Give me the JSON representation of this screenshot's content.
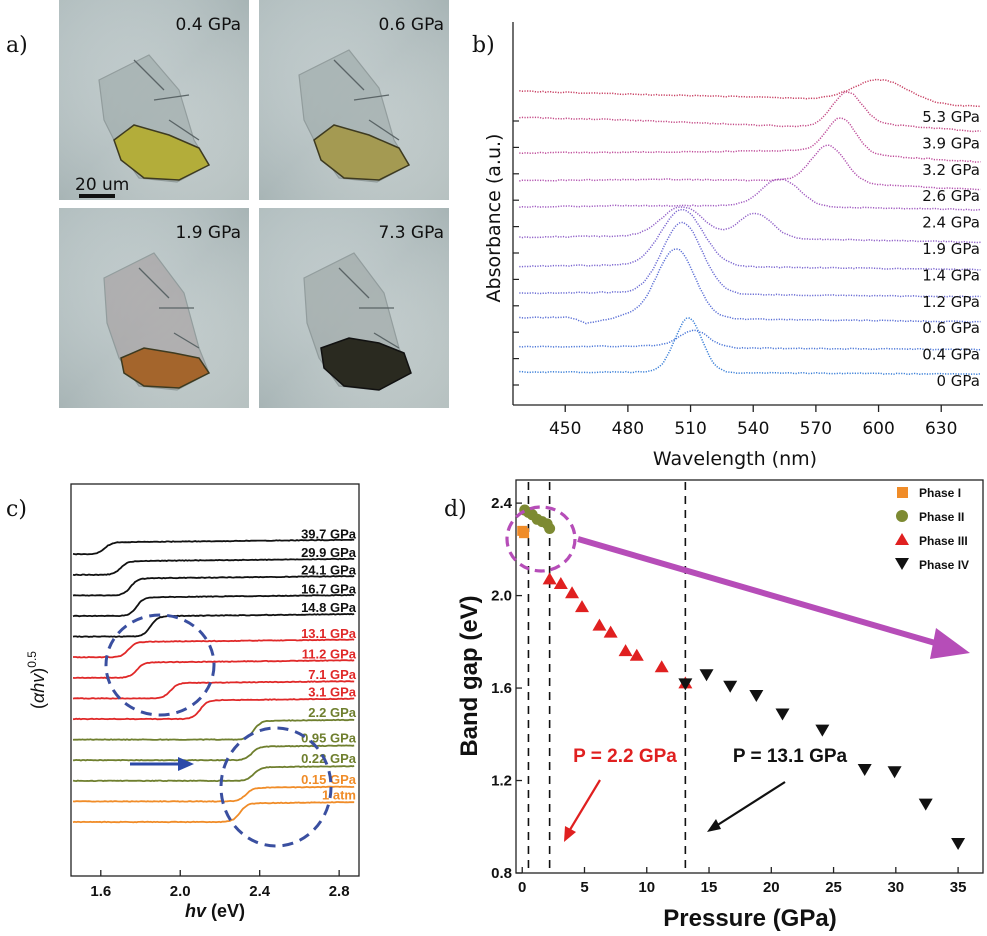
{
  "panel_a": {
    "letter": "a)",
    "scale_bar": "20 um",
    "images": [
      {
        "label": "0.4 GPa",
        "crystal": "#b3ad3a"
      },
      {
        "label": "0.6 GPa",
        "crystal": "#a49a52"
      },
      {
        "label": "1.9 GPa",
        "crystal": "#a4652c"
      },
      {
        "label": "7.3 GPa",
        "crystal": "#2a2a20"
      }
    ]
  },
  "panel_b": {
    "letter": "b)"
  },
  "panel_c": {
    "letter": "c)"
  },
  "panel_d": {
    "letter": "d)"
  },
  "chart_data": [
    {
      "panel": "b",
      "type": "line",
      "xlabel": "Wavelength (nm)",
      "ylabel": "Absorbance (a.u.)",
      "xlim": [
        425,
        650
      ],
      "xticks": [
        450,
        480,
        510,
        540,
        570,
        600,
        630
      ],
      "series": [
        {
          "name": "0 GPa",
          "color": "#3a7fd8",
          "offset": 0.0,
          "base": [
            [
              425,
              0.3
            ],
            [
              500,
              0.3
            ],
            [
              520,
              0.28
            ],
            [
              650,
              0.22
            ]
          ],
          "peaks": [
            {
              "c": 509,
              "h": 2.05,
              "w": 6.5
            }
          ]
        },
        {
          "name": "0.4 GPa",
          "color": "#4c77d8",
          "offset": 1.0,
          "base": [
            [
              425,
              0.25
            ],
            [
              505,
              0.3
            ],
            [
              520,
              0.22
            ],
            [
              650,
              0.15
            ]
          ],
          "peaks": [
            {
              "c": 512,
              "h": 0.62,
              "w": 7
            }
          ]
        },
        {
          "name": "0.6 GPa",
          "color": "#5a6fd6",
          "offset": 2.0,
          "base": [
            [
              425,
              0.35
            ],
            [
              452,
              0.38
            ],
            [
              460,
              0.15
            ],
            [
              480,
              0.45
            ],
            [
              520,
              0.32
            ],
            [
              650,
              0.2
            ]
          ],
          "peaks": [
            {
              "c": 503,
              "h": 2.6,
              "w": 9
            }
          ]
        },
        {
          "name": "1.2 GPa",
          "color": "#6a6cd4",
          "offset": 3.0,
          "base": [
            [
              425,
              0.28
            ],
            [
              470,
              0.32
            ],
            [
              520,
              0.25
            ],
            [
              650,
              0.15
            ]
          ],
          "peaks": [
            {
              "c": 506,
              "h": 2.7,
              "w": 9.5
            }
          ]
        },
        {
          "name": "1.4 GPa",
          "color": "#7b66d0",
          "offset": 4.0,
          "base": [
            [
              425,
              0.3
            ],
            [
              470,
              0.35
            ],
            [
              520,
              0.3
            ],
            [
              650,
              0.18
            ]
          ],
          "peaks": [
            {
              "c": 506,
              "h": 2.15,
              "w": 10
            }
          ]
        },
        {
          "name": "1.9 GPa",
          "color": "#9060c8",
          "offset": 5.0,
          "base": [
            [
              425,
              0.4
            ],
            [
              470,
              0.45
            ],
            [
              520,
              0.4
            ],
            [
              650,
              0.22
            ]
          ],
          "peaks": [
            {
              "c": 506,
              "h": 1.15,
              "w": 10
            },
            {
              "c": 541,
              "h": 0.95,
              "w": 8
            }
          ]
        },
        {
          "name": "2.4 GPa",
          "color": "#a05ac0",
          "offset": 6.0,
          "base": [
            [
              425,
              0.55
            ],
            [
              470,
              0.6
            ],
            [
              530,
              0.6
            ],
            [
              650,
              0.45
            ]
          ],
          "peaks": [
            {
              "c": 553,
              "h": 1.05,
              "w": 9
            }
          ]
        },
        {
          "name": "2.6 GPa",
          "color": "#b252b0",
          "offset": 7.0,
          "base": [
            [
              425,
              0.55
            ],
            [
              500,
              0.6
            ],
            [
              560,
              0.55
            ],
            [
              650,
              0.2
            ]
          ],
          "peaks": [
            {
              "c": 576,
              "h": 1.4,
              "w": 8
            }
          ]
        },
        {
          "name": "3.2 GPa",
          "color": "#bf4c9a",
          "offset": 8.0,
          "base": [
            [
              425,
              0.6
            ],
            [
              520,
              0.65
            ],
            [
              560,
              0.7
            ],
            [
              650,
              0.25
            ]
          ],
          "peaks": [
            {
              "c": 582,
              "h": 1.35,
              "w": 7
            }
          ]
        },
        {
          "name": "3.9 GPa",
          "color": "#c44a86",
          "offset": 9.0,
          "base": [
            [
              425,
              0.95
            ],
            [
              480,
              0.85
            ],
            [
              560,
              0.6
            ],
            [
              600,
              0.7
            ],
            [
              650,
              0.4
            ]
          ],
          "peaks": [
            {
              "c": 585,
              "h": 1.25,
              "w": 7
            }
          ]
        },
        {
          "name": "5.3 GPa",
          "color": "#c83f62",
          "offset": 10.0,
          "base": [
            [
              425,
              0.95
            ],
            [
              470,
              0.85
            ],
            [
              550,
              0.7
            ],
            [
              650,
              0.35
            ]
          ],
          "peaks": [
            {
              "c": 601,
              "h": 0.85,
              "w": 13
            }
          ]
        }
      ]
    },
    {
      "panel": "c",
      "type": "line",
      "xlabel": "hv (eV)",
      "ylabel": "(αhv)0.5",
      "xlim": [
        1.45,
        2.9
      ],
      "xticks": [
        "1.6",
        "2.0",
        "2.4",
        "2.8"
      ],
      "series": [
        {
          "name": "1 atm",
          "color": "#f08c28",
          "edge": 2.3,
          "step": 0.55
        },
        {
          "name": "0.15 GPa",
          "color": "#f08c28",
          "edge": 2.33,
          "step": 0.4
        },
        {
          "name": "0.22 GPa",
          "color": "#6f7f2e",
          "edge": 2.37,
          "step": 0.4
        },
        {
          "name": "0.95 GPa",
          "color": "#6f7f2e",
          "edge": 2.36,
          "step": 0.4
        },
        {
          "name": "2.2 GPa",
          "color": "#6f7f2e",
          "edge": 2.37,
          "step": 0.55
        },
        {
          "name": "3.1 GPa",
          "color": "#e02828",
          "edge": 2.1,
          "step": 0.55
        },
        {
          "name": "7.1 GPa",
          "color": "#e02828",
          "edge": 1.95,
          "step": 0.45
        },
        {
          "name": "11.2 GPa",
          "color": "#e02828",
          "edge": 1.78,
          "step": 0.45
        },
        {
          "name": "13.1 GPa",
          "color": "#e02828",
          "edge": 1.74,
          "step": 0.45
        },
        {
          "name": "14.8 GPa",
          "color": "#111111",
          "edge": 1.85,
          "step": 0.6
        },
        {
          "name": "16.7 GPa",
          "color": "#111111",
          "edge": 1.78,
          "step": 0.55
        },
        {
          "name": "24.1 GPa",
          "color": "#111111",
          "edge": 1.75,
          "step": 0.5
        },
        {
          "name": "29.9 GPa",
          "color": "#111111",
          "edge": 1.7,
          "step": 0.4
        },
        {
          "name": "39.7 GPa",
          "color": "#111111",
          "edge": 1.62,
          "step": 0.35
        }
      ]
    },
    {
      "panel": "d",
      "type": "scatter",
      "xlabel": "Pressure (GPa)",
      "ylabel": "Band gap (eV)",
      "xlim": [
        -0.5,
        37
      ],
      "ylim": [
        0.8,
        2.5
      ],
      "xticks": [
        0,
        5,
        10,
        15,
        20,
        25,
        30,
        35
      ],
      "yticks": [
        "0.8",
        "1.2",
        "1.6",
        "2.0",
        "2.4"
      ],
      "legend_position": "top-right",
      "vlines": [
        0.5,
        2.2,
        13.1
      ],
      "series": [
        {
          "name": "Phase I",
          "marker": "square",
          "color": "#f08c28",
          "points": [
            [
              0.0,
              2.28
            ],
            [
              0.15,
              2.27
            ]
          ]
        },
        {
          "name": "Phase II",
          "marker": "circle",
          "color": "#7d8a32",
          "points": [
            [
              0.2,
              2.37
            ],
            [
              0.5,
              2.36
            ],
            [
              0.8,
              2.35
            ],
            [
              1.2,
              2.33
            ],
            [
              1.6,
              2.32
            ],
            [
              2.0,
              2.31
            ],
            [
              2.2,
              2.29
            ]
          ]
        },
        {
          "name": "Phase III",
          "marker": "triangle-up",
          "color": "#e02020",
          "points": [
            [
              2.2,
              2.07
            ],
            [
              3.1,
              2.05
            ],
            [
              4.0,
              2.01
            ],
            [
              4.8,
              1.95
            ],
            [
              6.2,
              1.87
            ],
            [
              7.1,
              1.84
            ],
            [
              8.3,
              1.76
            ],
            [
              9.2,
              1.74
            ],
            [
              11.2,
              1.69
            ],
            [
              13.1,
              1.62
            ]
          ]
        },
        {
          "name": "Phase IV",
          "marker": "triangle-down",
          "color": "#111111",
          "points": [
            [
              13.1,
              1.62
            ],
            [
              14.8,
              1.66
            ],
            [
              16.7,
              1.61
            ],
            [
              18.8,
              1.57
            ],
            [
              20.9,
              1.49
            ],
            [
              24.1,
              1.42
            ],
            [
              27.5,
              1.25
            ],
            [
              29.9,
              1.24
            ],
            [
              32.4,
              1.1
            ],
            [
              35.0,
              0.93
            ]
          ]
        }
      ],
      "annotations": [
        {
          "text": "P = 2.2 GPa",
          "color": "#e02020"
        },
        {
          "text": "P = 13.1 GPa",
          "color": "#111111"
        }
      ]
    }
  ]
}
